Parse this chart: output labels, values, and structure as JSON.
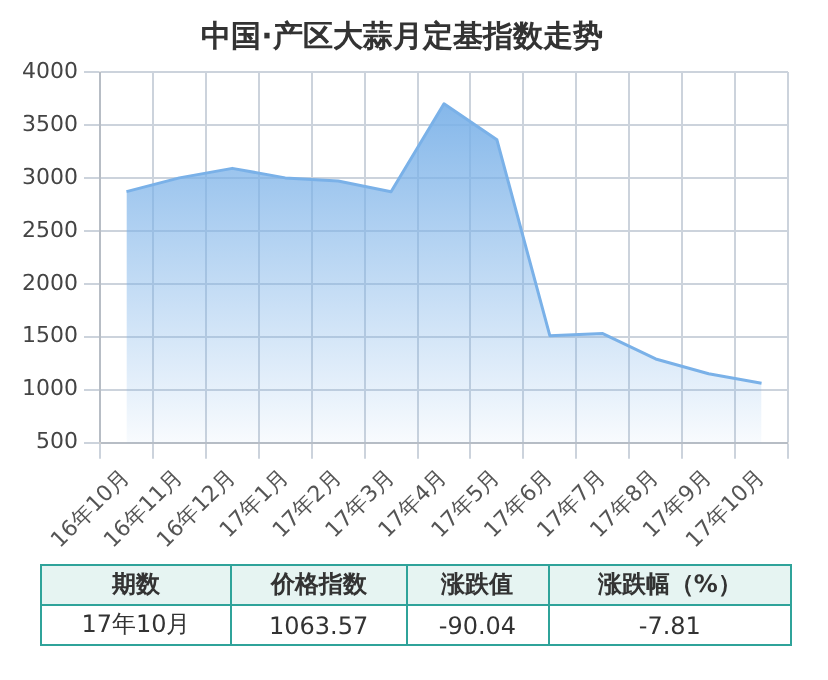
{
  "chart_data": {
    "type": "area",
    "title": "中国·产区大蒜月定基指数走势",
    "categories": [
      "16年10月",
      "16年11月",
      "16年12月",
      "17年1月",
      "17年2月",
      "17年3月",
      "17年4月",
      "17年5月",
      "17年6月",
      "17年7月",
      "17年8月",
      "17年9月",
      "17年10月"
    ],
    "series": [
      {
        "color": "#7ab1e8",
        "values": [
          2870,
          3000,
          3090,
          3000,
          2970,
          2870,
          3700,
          3360,
          1510,
          1530,
          1290,
          1150,
          1060
        ]
      }
    ],
    "ylim": [
      500,
      4000
    ],
    "yticks": [
      500,
      1000,
      1500,
      2000,
      2500,
      3000,
      3500,
      4000
    ],
    "grid": true,
    "legend": false,
    "marker": "none",
    "annotations": [
      "期数",
      "价格指数",
      "涨跌值",
      "涨跌幅（%）",
      "17年10月",
      "1063.57",
      "-90.04",
      "-7.81"
    ]
  }
}
